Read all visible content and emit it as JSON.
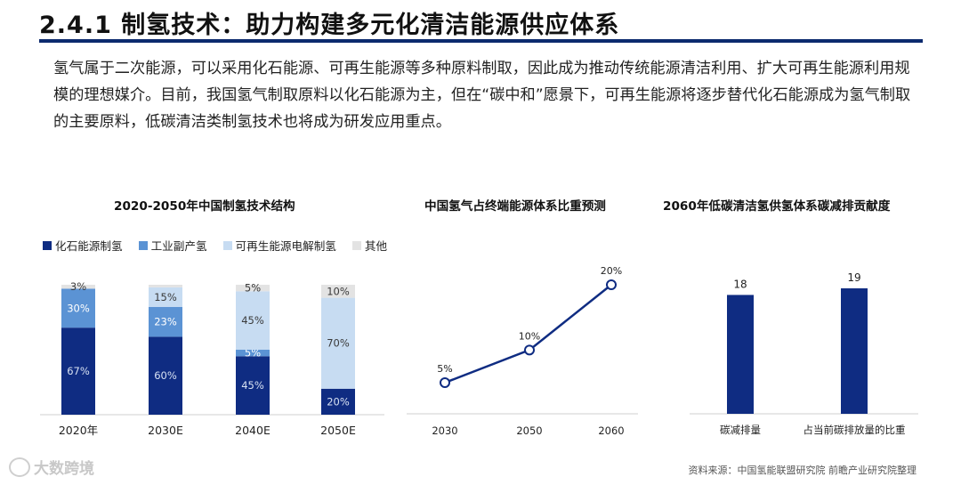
{
  "header": {
    "title": "2.4.1 制氢技术：助力构建多元化清洁能源供应体系",
    "intro": "氢气属于二次能源，可以采用化石能源、可再生能源等多种原料制取，因此成为推动传统能源清洁利用、扩大可再生能源利用规模的理想媒介。目前，我国氢气制取原料以化石能源为主，但在“碳中和”愿景下，可再生能源将逐步替代化石能源成为氢气制取的主要原料，低碳清洁类制氢技术也将成为研发应用重点。"
  },
  "colors": {
    "dark": "#0f2c82",
    "mid": "#5b93d4",
    "light": "#c7dcf2",
    "gray": "#e3e3e3",
    "rule": "#0c2a6e"
  },
  "chart_data": [
    {
      "type": "bar",
      "stacked": true,
      "title": "2020-2050年中国制氢技术结构",
      "categories": [
        "2020年",
        "2030E",
        "2040E",
        "2050E"
      ],
      "series": [
        {
          "name": "化石能源制氢",
          "values": [
            67,
            60,
            45,
            20
          ],
          "labels": [
            "67%",
            "60%",
            "45%",
            "20%"
          ]
        },
        {
          "name": "工业副产氢",
          "values": [
            30,
            23,
            5,
            0
          ],
          "labels": [
            "30%",
            "23%",
            "5%",
            ""
          ]
        },
        {
          "name": "可再生能源电解制氢",
          "values": [
            0,
            15,
            45,
            70
          ],
          "labels": [
            "",
            "15%",
            "45%",
            "70%"
          ]
        },
        {
          "name": "其他",
          "values": [
            3,
            2,
            5,
            10
          ],
          "labels": [
            "3%",
            "",
            "5%",
            "10%"
          ]
        }
      ],
      "ylim": [
        0,
        100
      ],
      "legend": "top-left",
      "grid": false
    },
    {
      "type": "line",
      "title": "中国氢气占终端能源体系比重预测",
      "x": [
        "2030",
        "2050",
        "2060"
      ],
      "values": [
        5,
        10,
        20
      ],
      "labels": [
        "5%",
        "10%",
        "20%"
      ],
      "ylim": [
        0,
        20
      ],
      "grid": false
    },
    {
      "type": "bar",
      "title": "2060年低碳清洁氢供氢体系碳减排贡献度",
      "categories": [
        "碳减排量",
        "占当前碳排放量的比重"
      ],
      "values": [
        18,
        19
      ],
      "labels": [
        "18",
        "19"
      ],
      "ylim": [
        0,
        19
      ],
      "grid": false
    }
  ],
  "footer": {
    "source": "资料来源：中国氢能联盟研究院 前瞻产业研究院整理",
    "watermark": "大数跨境"
  }
}
